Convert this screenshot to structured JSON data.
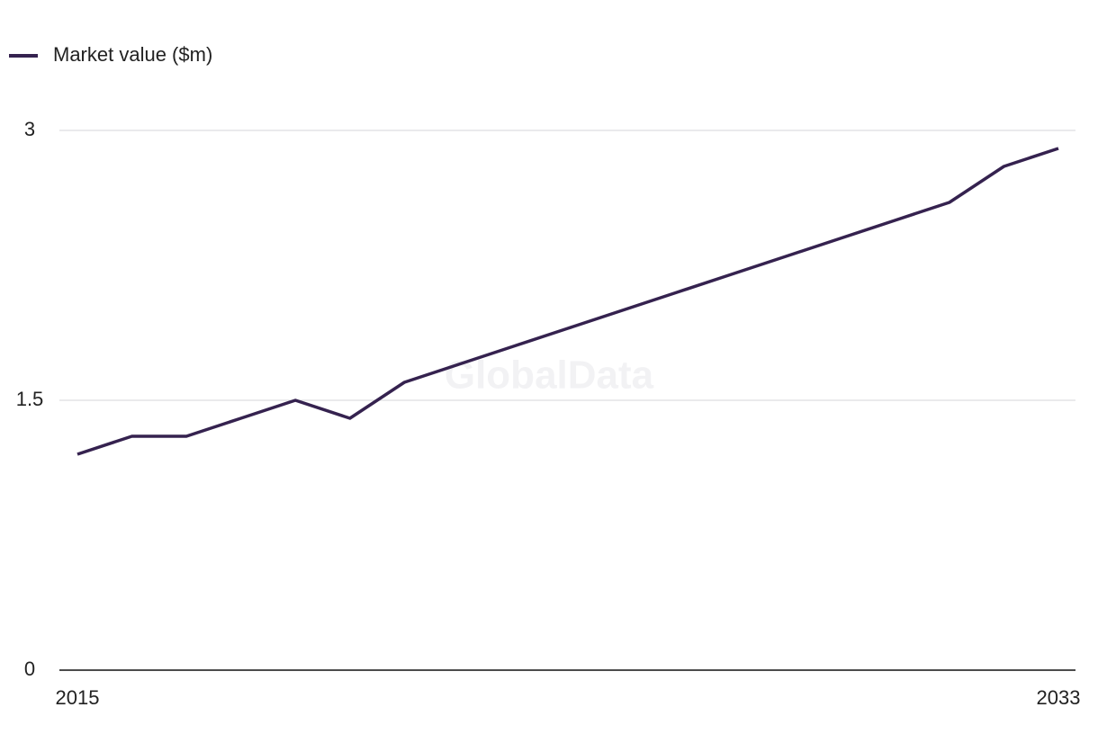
{
  "chart_data": {
    "type": "line",
    "watermark": "GlobalData",
    "x": [
      2015,
      2016,
      2017,
      2018,
      2019,
      2020,
      2021,
      2022,
      2023,
      2024,
      2025,
      2026,
      2027,
      2028,
      2029,
      2030,
      2031,
      2032,
      2033
    ],
    "series": [
      {
        "name": "Market value ($m)",
        "color": "#35224f",
        "values": [
          1.2,
          1.3,
          1.3,
          1.4,
          1.5,
          1.4,
          1.6,
          1.7,
          1.8,
          1.9,
          2.0,
          2.1,
          2.2,
          2.3,
          2.4,
          2.5,
          2.6,
          2.8,
          2.9
        ]
      }
    ],
    "xlim": [
      2015,
      2033
    ],
    "xticks": [
      2015,
      2033
    ],
    "ylim": [
      0,
      3
    ],
    "yticks": [
      0,
      1.5,
      3
    ],
    "grid": true,
    "legend": "top-left"
  }
}
